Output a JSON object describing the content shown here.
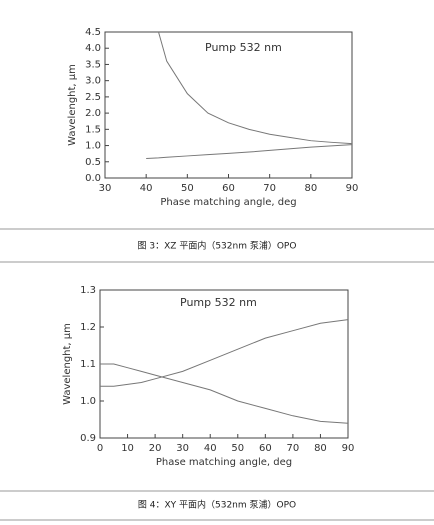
{
  "chart_data": [
    {
      "type": "line",
      "annotation": "Pump 532 nm",
      "xlabel": "Phase matching angle, deg",
      "ylabel": "Wavelenght, µm",
      "caption": "图 3：XZ 平面内（532nm 泵浦）OPO",
      "xlim": [
        30,
        90
      ],
      "xticks": [
        30,
        40,
        50,
        60,
        70,
        80,
        90
      ],
      "ylim": [
        0,
        4.5
      ],
      "yticks": [
        {
          "value": 0,
          "label": "0.0"
        },
        0.5,
        {
          "value": 1,
          "label": "1.0"
        },
        1.5,
        {
          "value": 2,
          "label": "2.0"
        },
        2.5,
        {
          "value": 3,
          "label": "3.0"
        },
        3.5,
        {
          "value": 4,
          "label": "4.0"
        },
        4.5
      ],
      "x": [
        40,
        43,
        45,
        50,
        55,
        60,
        65,
        70,
        75,
        80,
        85,
        90
      ],
      "series": [
        {
          "color": "#777777",
          "values": [
            null,
            4.5,
            3.6,
            2.6,
            2.0,
            1.7,
            1.5,
            1.35,
            1.25,
            1.15,
            1.1,
            1.06
          ]
        },
        {
          "color": "#777777",
          "values": [
            0.6,
            0.62,
            0.64,
            0.68,
            0.72,
            0.76,
            0.8,
            0.85,
            0.9,
            0.95,
            0.99,
            1.03
          ]
        }
      ]
    },
    {
      "type": "line",
      "annotation": "Pump 532 nm",
      "xlabel": "Phase matching angle, deg",
      "ylabel": "Wavelenght, µm",
      "caption": "图 4：XY 平面内（532nm 泵浦）OPO",
      "xlim": [
        0,
        90
      ],
      "xticks": [
        0,
        10,
        20,
        30,
        40,
        50,
        60,
        70,
        80,
        90
      ],
      "ylim": [
        0.9,
        1.3
      ],
      "yticks": [
        0.9,
        {
          "value": 1,
          "label": "1.0"
        },
        1.1,
        1.2,
        1.3
      ],
      "x": [
        0,
        5,
        10,
        15,
        20,
        30,
        40,
        50,
        60,
        70,
        80,
        90
      ],
      "series": [
        {
          "color": "#777777",
          "values": [
            1.1,
            1.1,
            1.09,
            1.08,
            1.07,
            1.05,
            1.03,
            1.0,
            0.98,
            0.96,
            0.945,
            0.94
          ]
        },
        {
          "color": "#777777",
          "values": [
            1.04,
            1.04,
            1.045,
            1.05,
            1.06,
            1.08,
            1.11,
            1.14,
            1.17,
            1.19,
            1.21,
            1.22
          ]
        }
      ]
    }
  ]
}
